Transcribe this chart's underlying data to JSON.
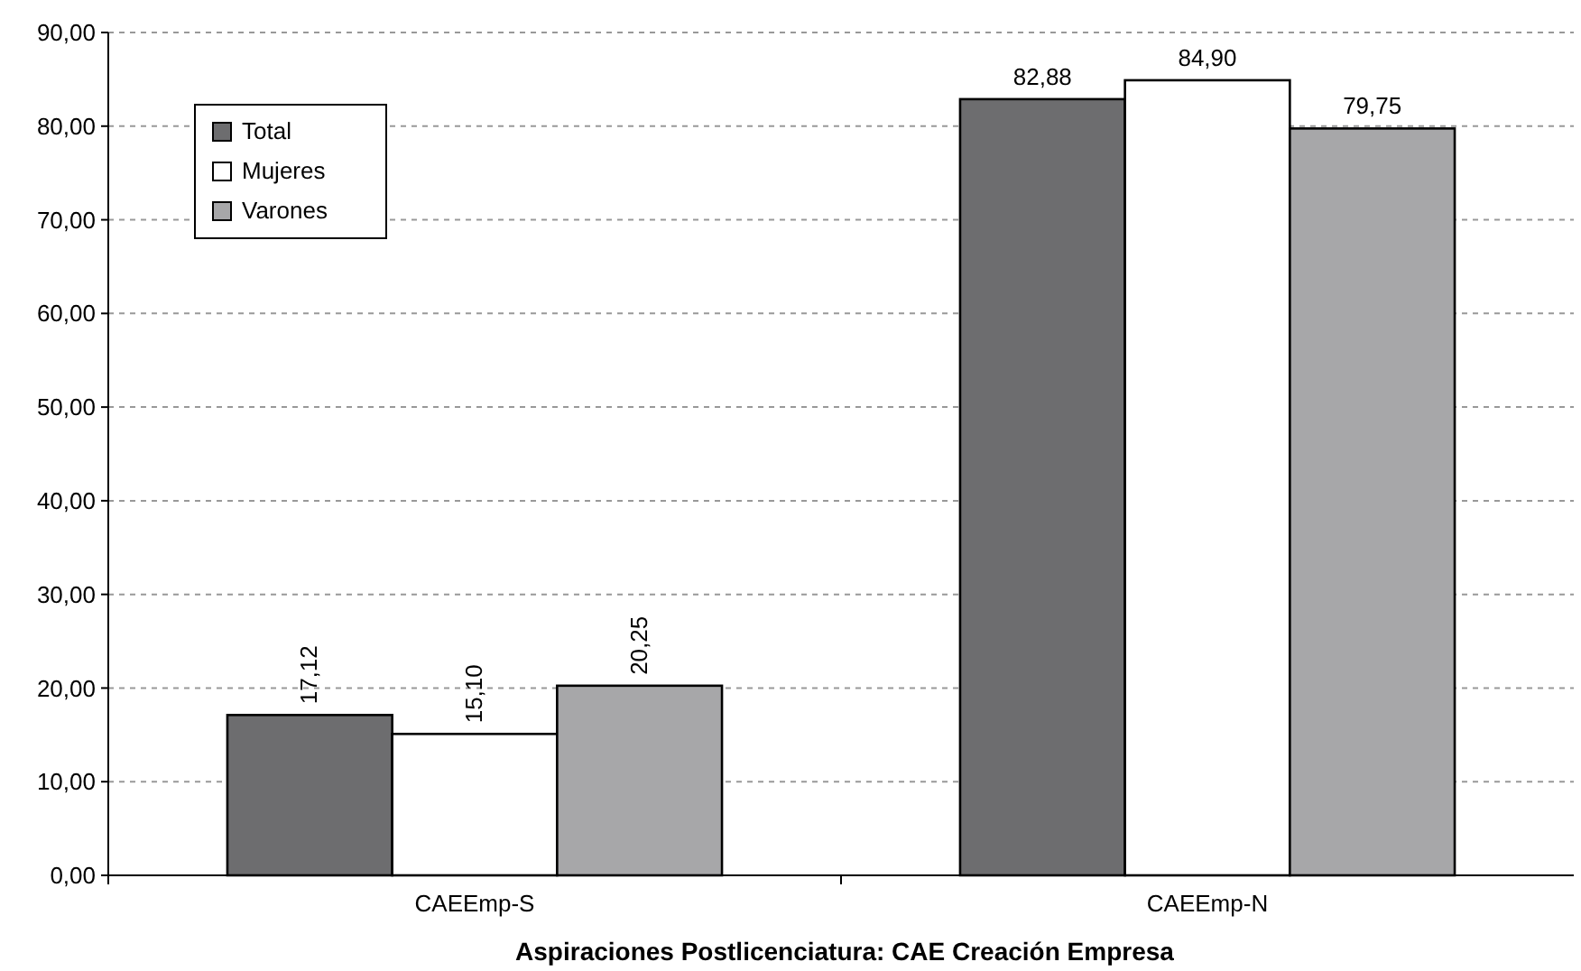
{
  "chart_data": {
    "type": "bar",
    "title": "Aspiraciones Postlicenciatura: CAE Creación Empresa",
    "categories": [
      "CAEEmp-S",
      "CAEEmp-N"
    ],
    "series": [
      {
        "name": "Total",
        "color": "#6d6d6f",
        "values": [
          17.12,
          82.88
        ],
        "value_labels": [
          "17,12",
          "82,88"
        ]
      },
      {
        "name": "Mujeres",
        "color": "#ffffff",
        "values": [
          15.1,
          84.9
        ],
        "value_labels": [
          "15,10",
          "84,90"
        ]
      },
      {
        "name": "Varones",
        "color": "#a7a7a9",
        "values": [
          20.25,
          79.75
        ],
        "value_labels": [
          "20,25",
          "79,75"
        ]
      }
    ],
    "ylim": [
      0,
      90
    ],
    "yticks": [
      {
        "value": 0,
        "label": "0,00"
      },
      {
        "value": 10,
        "label": "10,00"
      },
      {
        "value": 20,
        "label": "20,00"
      },
      {
        "value": 30,
        "label": "30,00"
      },
      {
        "value": 40,
        "label": "40,00"
      },
      {
        "value": 50,
        "label": "50,00"
      },
      {
        "value": 60,
        "label": "60,00"
      },
      {
        "value": 70,
        "label": "70,00"
      },
      {
        "value": 80,
        "label": "80,00"
      },
      {
        "value": 90,
        "label": "90,00"
      }
    ],
    "grid": "y",
    "legend": "top left"
  }
}
